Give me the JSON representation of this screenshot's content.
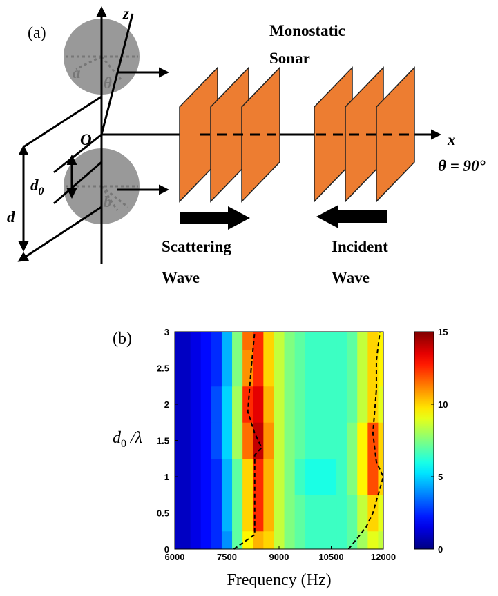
{
  "diagram": {
    "panel": "(a)",
    "z_axis": "z",
    "origin": "O",
    "x_axis": "x",
    "angle": "θ = 90°",
    "sonar": [
      "Monostatic",
      "Sonar"
    ],
    "d0": {
      "main": "d",
      "sub": "0"
    },
    "d": "d",
    "a": "a",
    "theta": "θ",
    "b": "b",
    "scattering": [
      "Scattering",
      "Wave"
    ],
    "incident": [
      "Incident",
      "Wave"
    ]
  },
  "chart_data": {
    "type": "heatmap",
    "panel": "(b)",
    "xlabel": "Frequency (Hz)",
    "ylabel": {
      "main": "d",
      "sub": "0",
      "rest": " /λ"
    },
    "x": [
      6000,
      6300,
      6600,
      6900,
      7200,
      7500,
      7800,
      8100,
      8400,
      8700,
      9000,
      9300,
      9600,
      9900,
      10200,
      10500,
      10800,
      11100,
      11400,
      11700,
      12000
    ],
    "y": [
      0,
      0.5,
      1,
      1.5,
      2,
      2.5,
      3
    ],
    "z": [
      [
        1,
        1,
        1.5,
        2,
        2.5,
        4,
        7,
        9.5,
        10.5,
        10,
        8.5,
        7.5,
        7,
        6.5,
        6.5,
        6.5,
        6.5,
        7,
        8,
        9,
        8.5
      ],
      [
        1,
        1,
        1.5,
        2,
        2.5,
        4.5,
        7,
        10,
        12.5,
        10.5,
        8.5,
        7.5,
        7,
        6.5,
        6.5,
        6.5,
        6.5,
        7,
        8.5,
        10,
        9
      ],
      [
        1,
        1,
        1.5,
        2,
        2.5,
        4.5,
        7,
        10,
        12.5,
        10.5,
        8.5,
        7.5,
        6.5,
        6,
        6,
        6,
        6.5,
        7.5,
        9.5,
        12,
        10
      ],
      [
        1,
        1,
        1.5,
        2,
        3,
        5,
        8,
        11.5,
        14,
        11,
        8.5,
        7.5,
        7,
        6.5,
        6.5,
        6.5,
        6.5,
        7.5,
        9.5,
        12,
        10
      ],
      [
        1,
        1,
        1.5,
        2,
        3,
        5,
        8,
        12.5,
        13.5,
        10.5,
        8.5,
        7.5,
        7,
        6.5,
        6.5,
        6.5,
        6.5,
        7,
        8.5,
        10,
        9
      ],
      [
        1,
        1,
        1.5,
        2,
        2.5,
        4.5,
        7.5,
        11,
        12.5,
        10,
        8.5,
        7.5,
        7,
        6.5,
        6.5,
        6.5,
        6.5,
        7,
        8.5,
        10,
        9.5
      ],
      [
        1,
        1,
        1.5,
        2,
        2.5,
        4.5,
        7.5,
        11.5,
        12.5,
        10,
        8.5,
        7.5,
        7,
        6.5,
        6.5,
        6.5,
        6.5,
        7,
        8.5,
        10,
        9.5
      ]
    ],
    "ridges": [
      {
        "x": [
          7700,
          8300,
          8300,
          8500,
          8300,
          8100,
          8200,
          8300
        ],
        "y": [
          0,
          0.2,
          1.3,
          1.4,
          1.6,
          1.9,
          2.5,
          3
        ]
      },
      {
        "x": [
          11000,
          11500,
          11700,
          12000,
          11800,
          11700,
          11800,
          11800,
          11900
        ],
        "y": [
          0,
          0.3,
          0.5,
          1,
          1.2,
          1.6,
          2.2,
          2.6,
          3
        ]
      }
    ],
    "xlim": [
      6000,
      12000
    ],
    "xticks": [
      6000,
      7500,
      9000,
      10500,
      12000
    ],
    "ylim": [
      0,
      3
    ],
    "yticks": [
      0,
      0.5,
      1,
      1.5,
      2,
      2.5,
      3
    ],
    "clim": [
      0,
      15
    ],
    "cticks": [
      0,
      5,
      10,
      15
    ],
    "colormap": "jet"
  }
}
